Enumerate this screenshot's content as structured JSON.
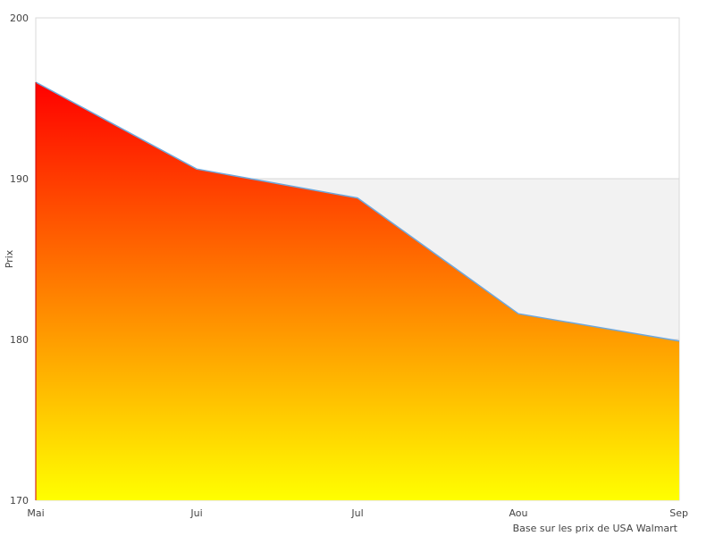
{
  "chart_data": {
    "type": "area",
    "categories": [
      "Mai",
      "Jui",
      "Jul",
      "Aou",
      "Sep"
    ],
    "series": [
      {
        "values": [
          196,
          190.6,
          188.8,
          181.6,
          179.9
        ]
      }
    ],
    "ylabel": "Prix",
    "ylim": [
      170,
      200
    ],
    "yticks": [
      170,
      180,
      190,
      200
    ],
    "note": "Base sur les prix de USA Walmart",
    "fill_gradient": [
      "#ff0000",
      "#ffff00"
    ],
    "line_color": "#6fa8dc",
    "band_color": "#f2f2f2",
    "grid_color": "#d8d8d8"
  }
}
